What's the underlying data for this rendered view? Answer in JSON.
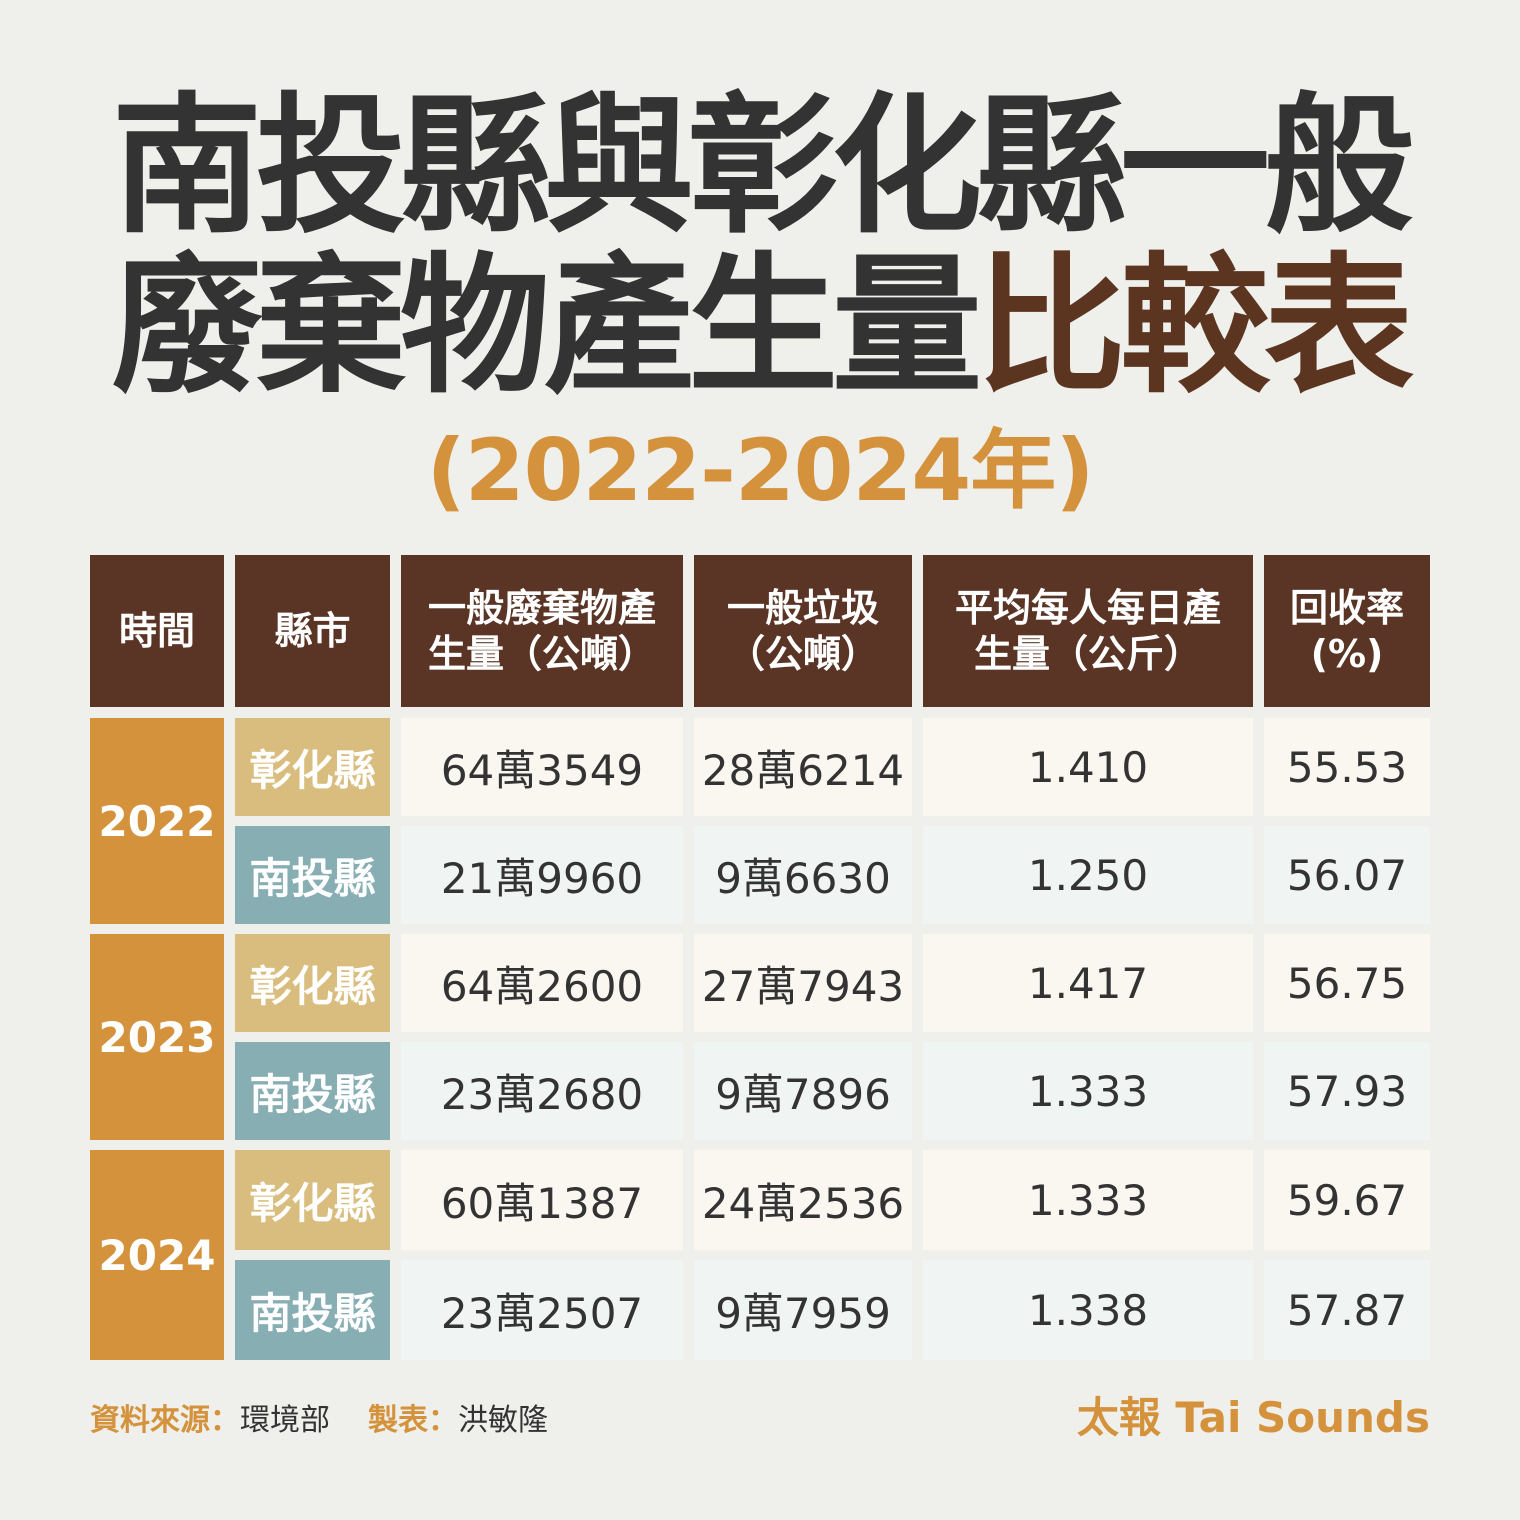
{
  "title": {
    "line1": "南投縣與彰化縣一般",
    "line2_main": "廢棄物產生量",
    "line2_highlight": "比較表",
    "subtitle": "(2022-2024年)"
  },
  "table": {
    "headers": {
      "time": "時間",
      "county": "縣市",
      "total_l1": "一般廢棄物產",
      "total_l2": "生量（公噸）",
      "garbage_l1": "一般垃圾",
      "garbage_l2": "（公噸）",
      "perday_l1": "平均每人每日產",
      "perday_l2": "生量（公斤）",
      "recycle_l1": "回收率",
      "recycle_l2": "(%)"
    },
    "rows": [
      {
        "year": "2022",
        "county": "彰化縣",
        "total": "64萬3549",
        "garbage": "28萬6214",
        "perday": "1.410",
        "recycle": "55.53"
      },
      {
        "year": "2022",
        "county": "南投縣",
        "total": "21萬9960",
        "garbage": "9萬6630",
        "perday": "1.250",
        "recycle": "56.07"
      },
      {
        "year": "2023",
        "county": "彰化縣",
        "total": "64萬2600",
        "garbage": "27萬7943",
        "perday": "1.417",
        "recycle": "56.75"
      },
      {
        "year": "2023",
        "county": "南投縣",
        "total": "23萬2680",
        "garbage": "9萬7896",
        "perday": "1.333",
        "recycle": "57.93"
      },
      {
        "year": "2024",
        "county": "彰化縣",
        "total": "60萬1387",
        "garbage": "24萬2536",
        "perday": "1.333",
        "recycle": "59.67"
      },
      {
        "year": "2024",
        "county": "南投縣",
        "total": "23萬2507",
        "garbage": "9萬7959",
        "perday": "1.338",
        "recycle": "57.87"
      }
    ]
  },
  "footer": {
    "source_label": "資料來源：",
    "source_value": "環境部",
    "maker_label": "製表：",
    "maker_value": "洪敏隆",
    "brand": "太報 Tai Sounds"
  },
  "colors": {
    "background": "#efefeb",
    "header_brown": "#5a3525",
    "year_orange": "#d5923c",
    "changhua_tan": "#d9bd7e",
    "nantou_teal": "#87aeb3",
    "title_dark": "#333333",
    "title_highlight": "#5c3520"
  }
}
